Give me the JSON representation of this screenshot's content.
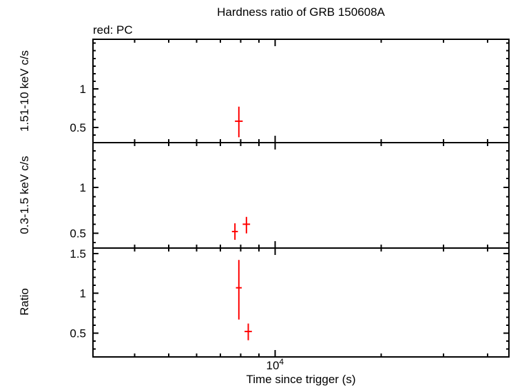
{
  "chart_data": {
    "type": "scatter",
    "title": "Hardness ratio of GRB 150608A",
    "legend": "red: PC",
    "xlabel": "Time since trigger (s)",
    "x_scale": "log",
    "x_range": [
      3050,
      46000
    ],
    "x_major_ticks": [
      {
        "value": 10000,
        "label": "10",
        "sup": "4"
      }
    ],
    "x_minor_ticks": [
      4000,
      5000,
      6000,
      7000,
      8000,
      9000,
      20000,
      30000,
      40000
    ],
    "series_color": "#ff0000",
    "frame_color": "#000000",
    "grid": false,
    "panels": [
      {
        "name": "hard-band-rate",
        "ylabel": "1.51-10 keV c/s",
        "y_range": [
          0.3,
          1.65
        ],
        "y_ticks": [
          {
            "value": 0.5,
            "label": "0.5"
          },
          {
            "value": 1,
            "label": "1"
          }
        ],
        "points": [
          {
            "t": 7900,
            "t_err": 200,
            "y": 0.58,
            "y_err_lo": 0.21,
            "y_err_hi": 0.19
          }
        ]
      },
      {
        "name": "soft-band-rate",
        "ylabel": "0.3-1.5 keV c/s",
        "y_range": [
          0.34,
          1.49
        ],
        "y_ticks": [
          {
            "value": 0.5,
            "label": "0.5"
          },
          {
            "value": 1,
            "label": "1"
          }
        ],
        "points": [
          {
            "t": 7700,
            "t_err": 150,
            "y": 0.52,
            "y_err_lo": 0.09,
            "y_err_hi": 0.09
          },
          {
            "t": 8300,
            "t_err": 200,
            "y": 0.6,
            "y_err_lo": 0.1,
            "y_err_hi": 0.08
          }
        ]
      },
      {
        "name": "hardness-ratio",
        "ylabel": "Ratio",
        "y_range": [
          0.2,
          1.57
        ],
        "y_ticks": [
          {
            "value": 0.5,
            "label": "0.5"
          },
          {
            "value": 1,
            "label": "1"
          },
          {
            "value": 1.5,
            "label": "1.5"
          }
        ],
        "points": [
          {
            "t": 7900,
            "t_err": 150,
            "y": 1.07,
            "y_err_lo": 0.4,
            "y_err_hi": 0.35
          },
          {
            "t": 8400,
            "t_err": 200,
            "y": 0.52,
            "y_err_lo": 0.11,
            "y_err_hi": 0.1
          }
        ]
      }
    ]
  }
}
